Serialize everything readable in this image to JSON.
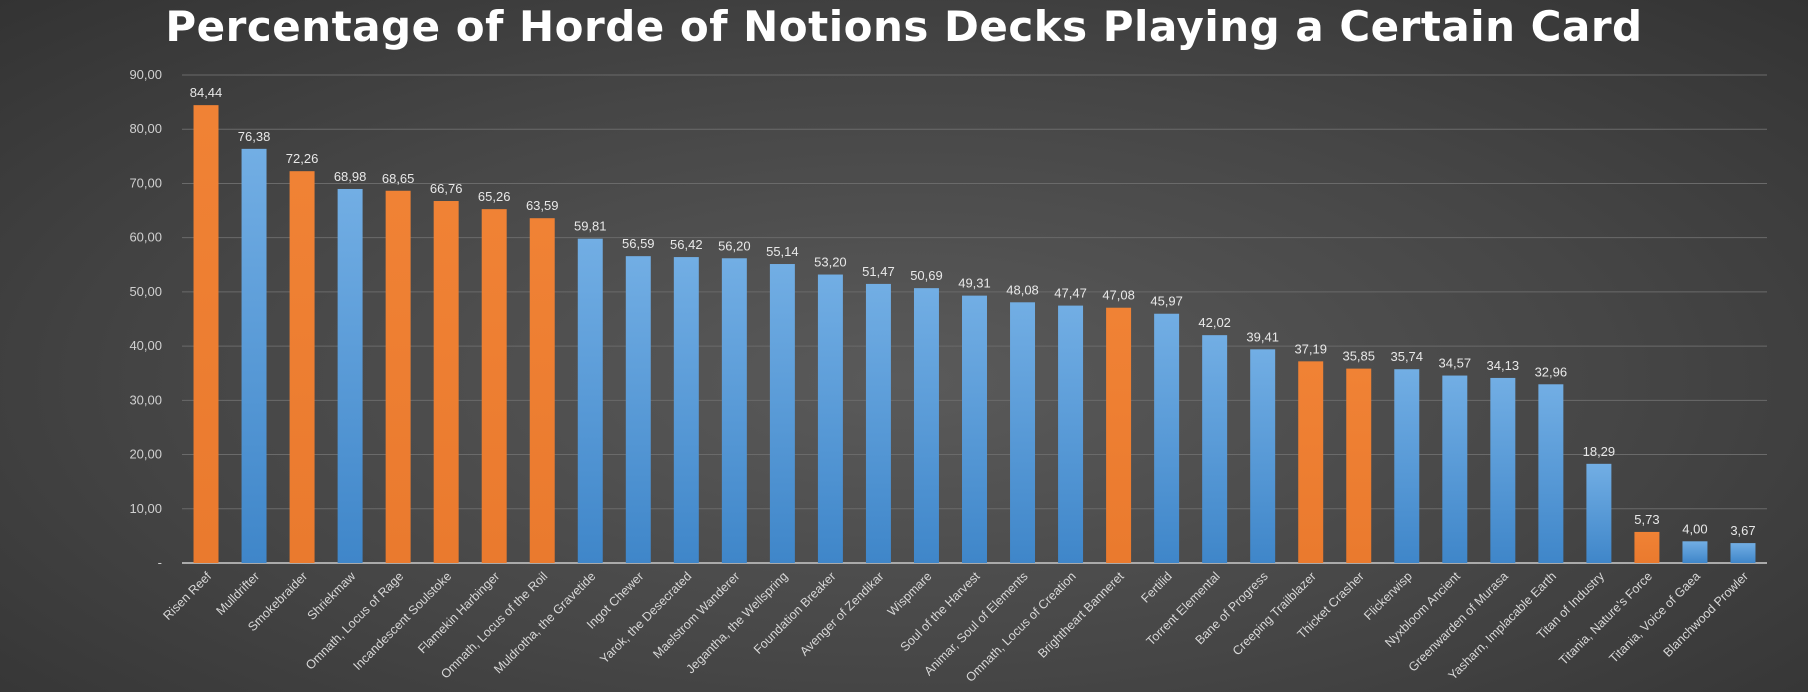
{
  "chart_data": {
    "type": "bar",
    "title": "Percentage of Horde of Notions Decks Playing a Certain Card",
    "xlabel": "",
    "ylabel": "",
    "ylim": [
      0,
      90
    ],
    "yticks": [
      0,
      10,
      20,
      30,
      40,
      50,
      60,
      70,
      80,
      90
    ],
    "ytick_labels": [
      "-",
      "10,00",
      "20,00",
      "30,00",
      "40,00",
      "50,00",
      "60,00",
      "70,00",
      "80,00",
      "90,00"
    ],
    "grid": true,
    "colors": {
      "orange": "#ED7D31",
      "blue": "#5B9BD5"
    },
    "categories": [
      "Risen Reef",
      "Mulldrifter",
      "Smokebraider",
      "Shriekmaw",
      "Omnath, Locus of Rage",
      "Incandescent Soulstoke",
      "Flamekin Harbinger",
      "Omnath, Locus of the Roil",
      "Muldrotha, the Gravetide",
      "Ingot Chewer",
      "Yarok, the Desecrated",
      "Maelstrom Wanderer",
      "Jegantha, the Wellspring",
      "Foundation Breaker",
      "Avenger of Zendikar",
      "Wispmare",
      "Soul of the Harvest",
      "Animar, Soul of Elements",
      "Omnath, Locus of Creation",
      "Brightheart Banneret",
      "Fertilid",
      "Torrent Elemental",
      "Bane of Progress",
      "Creeping Trailblazer",
      "Thicket Crasher",
      "Flickerwisp",
      "Nyxbloom Ancient",
      "Greenwarden of Murasa",
      "Yasharn, Implacable Earth",
      "Titan of Industry",
      "Titania, Nature's Force",
      "Titania, Voice of Gaea",
      "Blanchwood Prowler"
    ],
    "values": [
      84.44,
      76.38,
      72.26,
      68.98,
      68.65,
      66.76,
      65.26,
      63.59,
      59.81,
      56.59,
      56.42,
      56.2,
      55.14,
      53.2,
      51.47,
      50.69,
      49.31,
      48.08,
      47.47,
      47.08,
      45.97,
      42.02,
      39.41,
      37.19,
      35.85,
      35.74,
      34.57,
      34.13,
      32.96,
      18.29,
      5.73,
      4.0,
      3.67
    ],
    "data_labels": [
      "84,44",
      "76,38",
      "72,26",
      "68,98",
      "68,65",
      "66,76",
      "65,26",
      "63,59",
      "59,81",
      "56,59",
      "56,42",
      "56,20",
      "55,14",
      "53,20",
      "51,47",
      "50,69",
      "49,31",
      "48,08",
      "47,47",
      "47,08",
      "45,97",
      "42,02",
      "39,41",
      "37,19",
      "35,85",
      "35,74",
      "34,57",
      "34,13",
      "32,96",
      "18,29",
      "5,73",
      "4,00",
      "3,67"
    ],
    "bar_colors": [
      "orange",
      "blue",
      "orange",
      "blue",
      "orange",
      "orange",
      "orange",
      "orange",
      "blue",
      "blue",
      "blue",
      "blue",
      "blue",
      "blue",
      "blue",
      "blue",
      "blue",
      "blue",
      "blue",
      "orange",
      "blue",
      "blue",
      "blue",
      "orange",
      "orange",
      "blue",
      "blue",
      "blue",
      "blue",
      "blue",
      "orange",
      "blue",
      "blue"
    ]
  }
}
